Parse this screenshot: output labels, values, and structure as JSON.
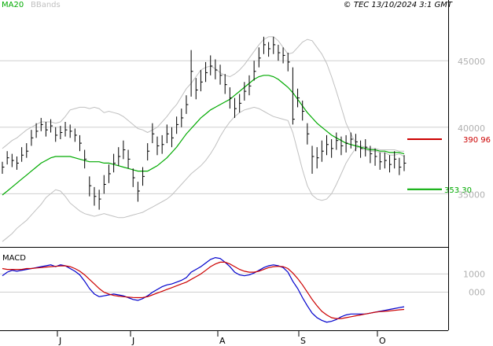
{
  "header": {
    "legend_ma": "MA20",
    "legend_bb": "BBands",
    "copyright": "© TEC 13/10/2024 3:1 GMT",
    "macd_title": "MACD"
  },
  "colors": {
    "price": "#000000",
    "ma": "#00aa00",
    "bands": "#c0c0c0",
    "resistance": "#cc0000",
    "support": "#00aa00",
    "macd": "#0000cc",
    "signal": "#cc0000",
    "grid": "#cfcfcf",
    "axis_text": "#b0b0b0"
  },
  "chart_data": [
    {
      "type": "ohlc",
      "panel": "price",
      "x_labels": [
        "J",
        "J",
        "A",
        "S",
        "O"
      ],
      "y_ticks": [
        35000,
        40000,
        45000
      ],
      "y_tick_labels": [
        "35000",
        "40000",
        "45000"
      ],
      "ylim": [
        31000,
        48500
      ],
      "grid": true,
      "levels": [
        {
          "name": "resistance",
          "value": 39096,
          "label": "390 96"
        },
        {
          "name": "support",
          "value": 35330,
          "label": "353 30"
        }
      ],
      "close": [
        37000,
        37700,
        37500,
        37300,
        37900,
        38200,
        39200,
        39700,
        40200,
        39800,
        40100,
        39400,
        39600,
        39800,
        39700,
        39400,
        38800,
        37600,
        35600,
        34800,
        34600,
        35700,
        36500,
        37300,
        37800,
        38300,
        37600,
        36200,
        35200,
        36300,
        38200,
        39500,
        38600,
        38700,
        39500,
        39200,
        40200,
        40700,
        41700,
        44200,
        42800,
        43400,
        44100,
        44600,
        44300,
        43900,
        43200,
        42200,
        41400,
        41800,
        42700,
        43100,
        44200,
        45200,
        46200,
        45900,
        46200,
        45600,
        45400,
        44900,
        40600,
        42200,
        41200,
        39500,
        37800,
        37700,
        38200,
        38700,
        38400,
        39000,
        38600,
        38800,
        39100,
        38900,
        38400,
        38500,
        38000,
        37800,
        37400,
        37500,
        37200,
        37600,
        37000,
        37300
      ],
      "high": [
        37400,
        38200,
        38000,
        37800,
        38500,
        38800,
        39800,
        40300,
        40700,
        40400,
        40600,
        40000,
        40100,
        40400,
        40200,
        39900,
        39400,
        38300,
        36300,
        35500,
        35300,
        36400,
        37200,
        38000,
        38500,
        39000,
        38300,
        36900,
        35900,
        37000,
        38800,
        40300,
        39300,
        39400,
        40200,
        40000,
        40800,
        41400,
        42400,
        45800,
        43700,
        44300,
        44900,
        45400,
        45100,
        44700,
        44000,
        43000,
        42200,
        42500,
        43400,
        43900,
        45000,
        46000,
        46800,
        46400,
        46800,
        46200,
        46000,
        45600,
        44500,
        42900,
        42000,
        40300,
        38600,
        38500,
        39000,
        39400,
        39100,
        39600,
        39300,
        39400,
        39600,
        39500,
        39000,
        39100,
        38600,
        38400,
        38100,
        38100,
        37900,
        38200,
        37700,
        37900
      ],
      "low": [
        36500,
        37200,
        37000,
        36800,
        37400,
        37700,
        38600,
        39200,
        39700,
        39300,
        39600,
        38900,
        39100,
        39300,
        39200,
        38900,
        38200,
        36900,
        34800,
        34100,
        33800,
        35000,
        35800,
        36600,
        37100,
        37600,
        36900,
        35500,
        34400,
        35600,
        37500,
        38800,
        37900,
        38000,
        38800,
        38500,
        39500,
        40000,
        41000,
        42300,
        42100,
        42700,
        43400,
        43900,
        43600,
        43200,
        42500,
        41400,
        40700,
        41100,
        42000,
        42400,
        43500,
        44500,
        45500,
        45300,
        45500,
        45000,
        44800,
        44200,
        40200,
        41500,
        40500,
        38700,
        36500,
        36900,
        37400,
        37900,
        37700,
        38300,
        37900,
        38100,
        38400,
        38200,
        37700,
        37800,
        37300,
        37100,
        36800,
        36900,
        36600,
        36900,
        36400,
        36700
      ]
    },
    {
      "type": "line",
      "panel": "price",
      "series": [
        {
          "name": "MA20",
          "values": [
            34900,
            35200,
            35500,
            35800,
            36100,
            36400,
            36700,
            37000,
            37300,
            37500,
            37700,
            37800,
            37800,
            37800,
            37800,
            37700,
            37600,
            37500,
            37400,
            37400,
            37400,
            37300,
            37300,
            37200,
            37100,
            37000,
            36900,
            36800,
            36700,
            36700,
            36700,
            36900,
            37100,
            37400,
            37700,
            38100,
            38500,
            39000,
            39500,
            39900,
            40300,
            40700,
            41000,
            41300,
            41500,
            41700,
            41900,
            42100,
            42400,
            42700,
            43000,
            43300,
            43600,
            43800,
            43900,
            43900,
            43800,
            43600,
            43300,
            43000,
            42600,
            42100,
            41600,
            41100,
            40700,
            40300,
            40000,
            39700,
            39400,
            39200,
            39000,
            38800,
            38700,
            38600,
            38500,
            38400,
            38300,
            38300,
            38200,
            38200,
            38100,
            38100,
            38100,
            38000
          ]
        },
        {
          "name": "BBands",
          "values": [
            31400,
            31700,
            32000,
            32400,
            32700,
            33000,
            33400,
            33800,
            34200,
            34700,
            35000,
            35300,
            35200,
            34800,
            34300,
            34000,
            33700,
            33500,
            33400,
            33300,
            33400,
            33500,
            33400,
            33300,
            33200,
            33200,
            33300,
            33400,
            33500,
            33600,
            33800,
            34000,
            34200,
            34400,
            34600,
            34900,
            35300,
            35700,
            36100,
            36500,
            36800,
            37100,
            37500,
            38000,
            38600,
            39300,
            39900,
            40400,
            40800,
            41100,
            41300,
            41400,
            41500,
            41400,
            41200,
            41000,
            40800,
            40700,
            40600,
            40500,
            39600,
            38200,
            36800,
            35600,
            34900,
            34600,
            34500,
            34600,
            35000,
            35700,
            36500,
            37300,
            37900,
            38400,
            38600,
            38500,
            38400,
            38400,
            38300,
            38300,
            38300,
            38300,
            38200,
            38200
          ]
        },
        {
          "name": "BBands",
          "values": [
            38400,
            38700,
            39000,
            39200,
            39500,
            39800,
            40000,
            40200,
            40400,
            40400,
            40400,
            40300,
            40400,
            40800,
            41300,
            41400,
            41500,
            41500,
            41400,
            41500,
            41400,
            41100,
            41200,
            41100,
            41000,
            40800,
            40500,
            40200,
            39900,
            39800,
            39600,
            39800,
            40000,
            40400,
            40800,
            41300,
            41700,
            42300,
            42900,
            43300,
            43800,
            44300,
            44500,
            44600,
            44400,
            44100,
            43900,
            43800,
            44000,
            44300,
            44700,
            45200,
            45700,
            46200,
            46600,
            46800,
            46800,
            46500,
            46000,
            45500,
            45600,
            46000,
            46400,
            46600,
            46500,
            46000,
            45500,
            44800,
            43800,
            42700,
            41500,
            40300,
            39500,
            38800,
            38400,
            38300,
            38200,
            38200,
            38100,
            38100,
            37900,
            37900,
            38000,
            37800
          ]
        }
      ]
    },
    {
      "type": "line",
      "panel": "macd",
      "y_ticks": [
        1000,
        0
      ],
      "y_tick_labels": [
        "1000",
        "000"
      ],
      "ylim": [
        -2050,
        2400
      ],
      "grid": true,
      "series": [
        {
          "name": "MACD",
          "values": [
            900,
            1100,
            1200,
            1150,
            1200,
            1250,
            1300,
            1350,
            1400,
            1450,
            1500,
            1400,
            1500,
            1450,
            1300,
            1150,
            950,
            600,
            200,
            -100,
            -250,
            -200,
            -150,
            -100,
            -150,
            -200,
            -300,
            -400,
            -450,
            -350,
            -200,
            0,
            150,
            300,
            400,
            450,
            550,
            650,
            800,
            1100,
            1250,
            1400,
            1600,
            1800,
            1900,
            1850,
            1650,
            1400,
            1100,
            950,
            900,
            950,
            1050,
            1200,
            1350,
            1450,
            1500,
            1450,
            1350,
            1100,
            600,
            200,
            -300,
            -750,
            -1150,
            -1400,
            -1550,
            -1650,
            -1600,
            -1500,
            -1350,
            -1250,
            -1200,
            -1200,
            -1200,
            -1200,
            -1150,
            -1100,
            -1050,
            -1000,
            -950,
            -900,
            -850,
            -800
          ]
        },
        {
          "name": "Signal",
          "values": [
            1300,
            1250,
            1250,
            1250,
            1250,
            1300,
            1300,
            1330,
            1350,
            1380,
            1400,
            1420,
            1440,
            1450,
            1400,
            1300,
            1150,
            950,
            700,
            450,
            200,
            0,
            -100,
            -180,
            -220,
            -250,
            -270,
            -290,
            -300,
            -290,
            -250,
            -150,
            -50,
            50,
            150,
            250,
            350,
            450,
            550,
            700,
            850,
            1000,
            1200,
            1400,
            1550,
            1650,
            1650,
            1550,
            1400,
            1250,
            1150,
            1100,
            1100,
            1150,
            1250,
            1350,
            1400,
            1420,
            1400,
            1300,
            1050,
            750,
            400,
            0,
            -400,
            -750,
            -1050,
            -1250,
            -1400,
            -1450,
            -1450,
            -1400,
            -1350,
            -1300,
            -1250,
            -1200,
            -1150,
            -1100,
            -1070,
            -1050,
            -1030,
            -1000,
            -970,
            -950
          ]
        }
      ]
    }
  ]
}
